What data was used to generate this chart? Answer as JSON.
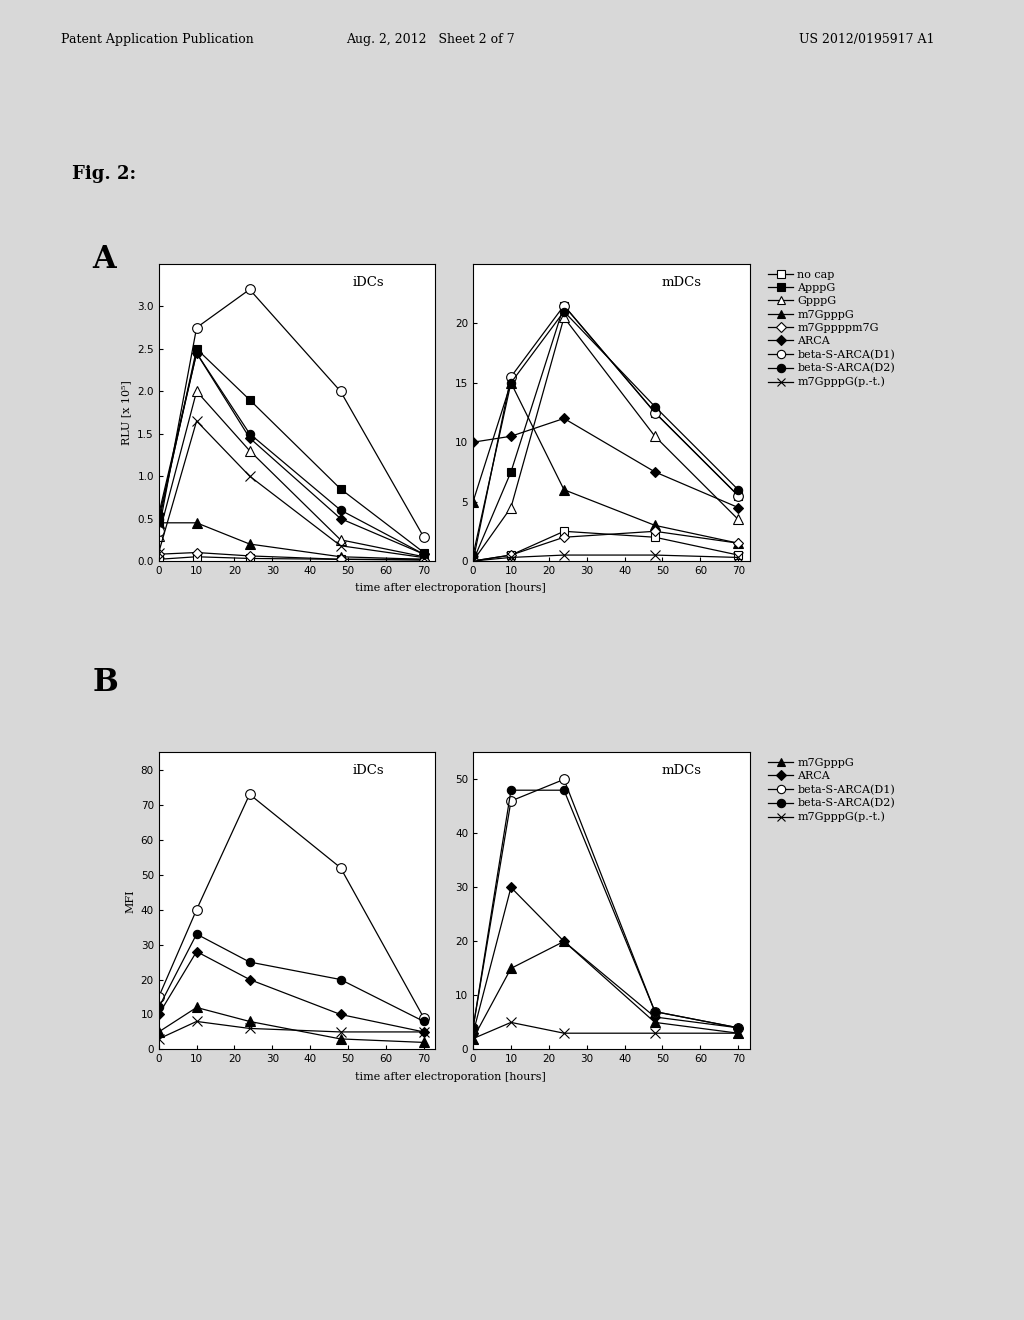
{
  "fig2_label": "Fig. 2:",
  "panel_A_label": "A",
  "panel_B_label": "B",
  "header_left": "Patent Application Publication",
  "header_mid": "Aug. 2, 2012   Sheet 2 of 7",
  "header_right": "US 2012/0195917 A1",
  "time_points": [
    0,
    10,
    24,
    48,
    70
  ],
  "A_iDCs_ylabel": "RLU [x 10⁵]",
  "A_xlabel": "time after electroporation [hours]",
  "A_iDCs_title": "iDCs",
  "A_mDCs_title": "mDCs",
  "A_ylim_iDCs": [
    0.0,
    3.5
  ],
  "A_yticks_iDCs": [
    0.0,
    0.5,
    1.0,
    1.5,
    2.0,
    2.5,
    3.0
  ],
  "A_ylim_mDCs": [
    0,
    25
  ],
  "A_yticks_mDCs": [
    0,
    5,
    10,
    15,
    20
  ],
  "B_iDCs_ylabel": "MFI",
  "B_xlabel": "time after electroporation [hours]",
  "B_iDCs_title": "iDCs",
  "B_mDCs_title": "mDCs",
  "B_ylim_iDCs": [
    0,
    85
  ],
  "B_yticks_iDCs": [
    0,
    10,
    20,
    30,
    40,
    50,
    60,
    70,
    80
  ],
  "B_ylim_mDCs": [
    0,
    55
  ],
  "B_yticks_mDCs": [
    0,
    10,
    20,
    30,
    40,
    50
  ],
  "xticks": [
    0,
    10,
    20,
    30,
    40,
    50,
    60,
    70
  ],
  "xlim": [
    0,
    73
  ],
  "A_iDCs_series": {
    "no_cap": [
      0.02,
      0.05,
      0.03,
      0.02,
      0.02
    ],
    "ApppG": [
      0.45,
      2.5,
      1.9,
      0.85,
      0.1
    ],
    "GpppG": [
      0.3,
      2.0,
      1.3,
      0.25,
      0.05
    ],
    "m7GpppG": [
      0.45,
      0.45,
      0.2,
      0.05,
      0.02
    ],
    "m7Gppppm7G": [
      0.08,
      0.1,
      0.06,
      0.02,
      0.01
    ],
    "ARCA": [
      0.55,
      2.45,
      1.45,
      0.5,
      0.08
    ],
    "beta_S_ARCA_D1": [
      0.35,
      2.75,
      3.2,
      2.0,
      0.28
    ],
    "beta_S_ARCA_D2": [
      0.5,
      2.45,
      1.5,
      0.6,
      0.08
    ],
    "m7GpppG_pt": [
      0.1,
      1.65,
      1.0,
      0.18,
      0.04
    ]
  },
  "A_mDCs_series": {
    "no_cap": [
      0.0,
      0.5,
      2.5,
      2.0,
      0.5
    ],
    "ApppG": [
      0.0,
      7.5,
      21.5,
      12.5,
      5.5
    ],
    "GpppG": [
      0.0,
      4.5,
      20.5,
      10.5,
      3.5
    ],
    "m7GpppG": [
      5.0,
      15.0,
      6.0,
      3.0,
      1.5
    ],
    "m7Gppppm7G": [
      0.0,
      0.5,
      2.0,
      2.5,
      1.5
    ],
    "ARCA": [
      10.0,
      10.5,
      12.0,
      7.5,
      4.5
    ],
    "beta_S_ARCA_D1": [
      0.0,
      15.5,
      21.5,
      12.5,
      5.5
    ],
    "beta_S_ARCA_D2": [
      0.5,
      15.0,
      21.0,
      13.0,
      6.0
    ],
    "m7GpppG_pt": [
      0.0,
      0.3,
      0.5,
      0.5,
      0.3
    ]
  },
  "B_iDCs_series": {
    "m7GpppG": [
      5,
      12,
      8,
      3,
      2
    ],
    "ARCA": [
      10,
      28,
      20,
      10,
      5
    ],
    "beta_S_ARCA_D1": [
      15,
      40,
      73,
      52,
      9
    ],
    "beta_S_ARCA_D2": [
      12,
      33,
      25,
      20,
      8
    ],
    "m7GpppG_pt": [
      3,
      8,
      6,
      5,
      5
    ]
  },
  "B_mDCs_series": {
    "m7GpppG": [
      2,
      15,
      20,
      5,
      3
    ],
    "ARCA": [
      3,
      30,
      20,
      6,
      4
    ],
    "beta_S_ARCA_D1": [
      4,
      46,
      50,
      7,
      4
    ],
    "beta_S_ARCA_D2": [
      4,
      48,
      48,
      7,
      4
    ],
    "m7GpppG_pt": [
      2,
      5,
      3,
      3,
      3
    ]
  },
  "legend_A": [
    {
      "label": "no cap",
      "marker": "s",
      "fillstyle": "none"
    },
    {
      "label": "ApppG",
      "marker": "s",
      "fillstyle": "full"
    },
    {
      "label": "GpppG",
      "marker": "^",
      "fillstyle": "none"
    },
    {
      "label": "m7GpppG",
      "marker": "^",
      "fillstyle": "full"
    },
    {
      "label": "m7Gppppm7G",
      "marker": "D",
      "fillstyle": "none"
    },
    {
      "label": "ARCA",
      "marker": "D",
      "fillstyle": "full"
    },
    {
      "label": "beta-S-ARCA(D1)",
      "marker": "o",
      "fillstyle": "none"
    },
    {
      "label": "beta-S-ARCA(D2)",
      "marker": "o",
      "fillstyle": "full"
    },
    {
      "label": "m7GpppG(p.-t.)",
      "marker": "x",
      "fillstyle": "full"
    }
  ],
  "legend_B": [
    {
      "label": "m7GpppG",
      "marker": "^",
      "fillstyle": "full"
    },
    {
      "label": "ARCA",
      "marker": "D",
      "fillstyle": "full"
    },
    {
      "label": "beta-S-ARCA(D1)",
      "marker": "o",
      "fillstyle": "none"
    },
    {
      "label": "beta-S-ARCA(D2)",
      "marker": "o",
      "fillstyle": "full"
    },
    {
      "label": "m7GpppG(p.-t.)",
      "marker": "x",
      "fillstyle": "full"
    }
  ],
  "page_bg": "#d8d8d8",
  "plot_bg": "#ffffff"
}
